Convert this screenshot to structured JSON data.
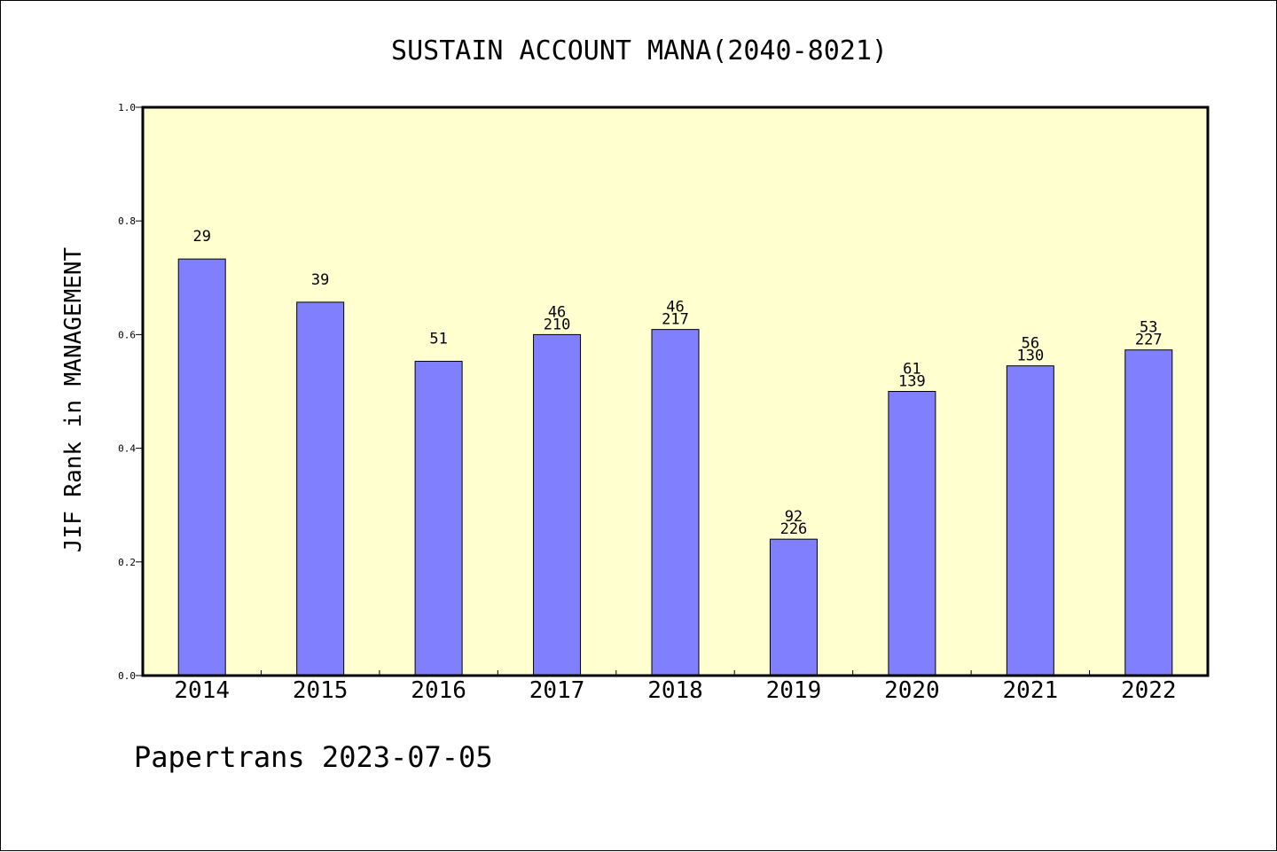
{
  "chart_data": {
    "type": "bar",
    "title": "SUSTAIN ACCOUNT MANA(2040-8021)",
    "xlabel": "",
    "ylabel": "JIF Rank in MANAGEMENT",
    "ylim": [
      0.0,
      1.0
    ],
    "yticks": [
      "0.0",
      "0.2",
      "0.4",
      "0.6",
      "0.8",
      "1.0"
    ],
    "categories": [
      "2014",
      "2015",
      "2016",
      "2017",
      "2018",
      "2019",
      "2020",
      "2021",
      "2022"
    ],
    "values": [
      0.733,
      0.657,
      0.553,
      0.6,
      0.609,
      0.24,
      0.5,
      0.545,
      0.573
    ],
    "labels": [
      {
        "rank": "29",
        "total": ""
      },
      {
        "rank": "39",
        "total": ""
      },
      {
        "rank": "51",
        "total": ""
      },
      {
        "rank": "46",
        "total": "210"
      },
      {
        "rank": "46",
        "total": "217"
      },
      {
        "rank": "92",
        "total": "226"
      },
      {
        "rank": "61",
        "total": "139"
      },
      {
        "rank": "56",
        "total": "130"
      },
      {
        "rank": "53",
        "total": "227"
      }
    ],
    "colors": {
      "plot_background": "#ffffd0",
      "bar_fill": "#8080ff",
      "bar_stroke": "#000000"
    },
    "grid": false,
    "legend": "none"
  },
  "footer": {
    "text": "Papertrans 2023-07-05"
  }
}
